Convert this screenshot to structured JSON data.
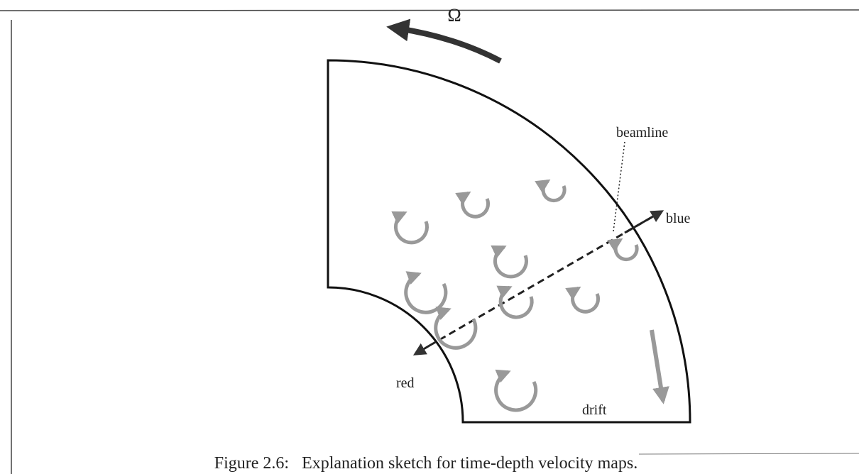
{
  "figure": {
    "omega_label": "Ω",
    "beamline_label": "beamline",
    "blue_label": "blue",
    "red_label": "red",
    "drift_label": "drift",
    "caption": "Figure 2.6:   Explanation sketch for time-depth velocity maps."
  }
}
